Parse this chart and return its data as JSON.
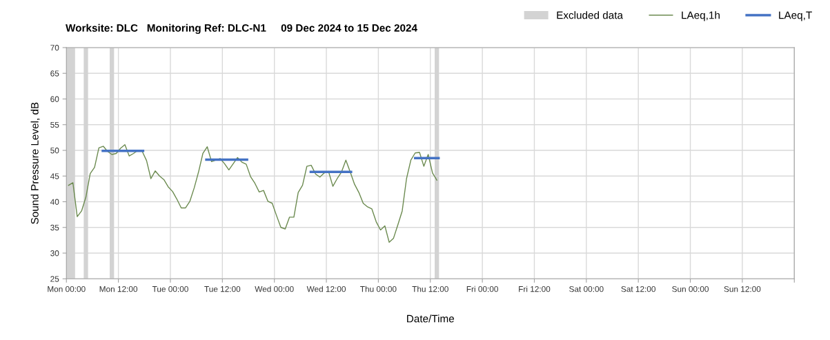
{
  "chart_data": {
    "type": "line",
    "title": "Worksite: DLC   Monitoring Ref: DLC-N1     09 Dec 2024 to 15 Dec 2024",
    "xlabel": "Date/Time",
    "ylabel": "Sound Pressure Level, dB",
    "xlim": [
      "2024-12-09T00:00",
      "2024-12-16T00:00"
    ],
    "ylim": [
      25,
      70
    ],
    "xticks": [
      {
        "value": "2024-12-09T00:00",
        "label": "Mon 00:00"
      },
      {
        "value": "2024-12-09T12:00",
        "label": "Mon 12:00"
      },
      {
        "value": "2024-12-10T00:00",
        "label": "Tue 00:00"
      },
      {
        "value": "2024-12-10T12:00",
        "label": "Tue 12:00"
      },
      {
        "value": "2024-12-11T00:00",
        "label": "Wed 00:00"
      },
      {
        "value": "2024-12-11T12:00",
        "label": "Wed 12:00"
      },
      {
        "value": "2024-12-12T00:00",
        "label": "Thu 00:00"
      },
      {
        "value": "2024-12-12T12:00",
        "label": "Thu 12:00"
      },
      {
        "value": "2024-12-13T00:00",
        "label": "Fri 00:00"
      },
      {
        "value": "2024-12-13T12:00",
        "label": "Fri 12:00"
      },
      {
        "value": "2024-12-14T00:00",
        "label": "Sat 00:00"
      },
      {
        "value": "2024-12-14T12:00",
        "label": "Sat 12:00"
      },
      {
        "value": "2024-12-15T00:00",
        "label": "Sun 00:00"
      },
      {
        "value": "2024-12-15T12:00",
        "label": "Sun 12:00"
      },
      {
        "value": "2024-12-16T00:00",
        "label": null
      }
    ],
    "yticks": [
      25,
      30,
      35,
      40,
      45,
      50,
      55,
      60,
      65,
      70
    ],
    "grid": true,
    "legend": "top right",
    "bands": [
      {
        "axis": "x",
        "from": "2024-12-09T00:00",
        "to": "2024-12-09T02:00",
        "label": "Excluded data",
        "color": "#d3d3d3"
      },
      {
        "axis": "x",
        "from": "2024-12-09T04:00",
        "to": "2024-12-09T05:00",
        "color": "#d3d3d3"
      },
      {
        "axis": "x",
        "from": "2024-12-09T10:00",
        "to": "2024-12-09T11:00",
        "color": "#d3d3d3"
      },
      {
        "axis": "x",
        "from": "2024-12-12T13:00",
        "to": "2024-12-12T14:00",
        "color": "#d3d3d3"
      }
    ],
    "series": [
      {
        "name": "LAeq,1h",
        "color": "#6b8a4f",
        "line_style": "solid",
        "x": [
          "2024-12-09T00:30",
          "2024-12-09T01:30",
          "2024-12-09T02:30",
          "2024-12-09T03:30",
          "2024-12-09T04:30",
          "2024-12-09T05:30",
          "2024-12-09T06:30",
          "2024-12-09T07:30",
          "2024-12-09T08:30",
          "2024-12-09T09:30",
          "2024-12-09T10:30",
          "2024-12-09T11:30",
          "2024-12-09T12:30",
          "2024-12-09T13:30",
          "2024-12-09T14:30",
          "2024-12-09T15:30",
          "2024-12-09T16:30",
          "2024-12-09T17:30",
          "2024-12-09T18:30",
          "2024-12-09T19:30",
          "2024-12-09T20:30",
          "2024-12-09T21:30",
          "2024-12-09T22:30",
          "2024-12-09T23:30",
          "2024-12-10T00:30",
          "2024-12-10T01:30",
          "2024-12-10T02:30",
          "2024-12-10T03:30",
          "2024-12-10T04:30",
          "2024-12-10T05:30",
          "2024-12-10T06:30",
          "2024-12-10T07:30",
          "2024-12-10T08:30",
          "2024-12-10T09:30",
          "2024-12-10T10:30",
          "2024-12-10T11:30",
          "2024-12-10T12:30",
          "2024-12-10T13:30",
          "2024-12-10T14:30",
          "2024-12-10T15:30",
          "2024-12-10T16:30",
          "2024-12-10T17:30",
          "2024-12-10T18:30",
          "2024-12-10T19:30",
          "2024-12-10T20:30",
          "2024-12-10T21:30",
          "2024-12-10T22:30",
          "2024-12-10T23:30",
          "2024-12-11T00:30",
          "2024-12-11T01:30",
          "2024-12-11T02:30",
          "2024-12-11T03:30",
          "2024-12-11T04:30",
          "2024-12-11T05:30",
          "2024-12-11T06:30",
          "2024-12-11T07:30",
          "2024-12-11T08:30",
          "2024-12-11T09:30",
          "2024-12-11T10:30",
          "2024-12-11T11:30",
          "2024-12-11T12:30",
          "2024-12-11T13:30",
          "2024-12-11T14:30",
          "2024-12-11T15:30",
          "2024-12-11T16:30",
          "2024-12-11T17:30",
          "2024-12-11T18:30",
          "2024-12-11T19:30",
          "2024-12-11T20:30",
          "2024-12-11T21:30",
          "2024-12-11T22:30",
          "2024-12-11T23:30",
          "2024-12-12T00:30",
          "2024-12-12T01:30",
          "2024-12-12T02:30",
          "2024-12-12T03:30",
          "2024-12-12T04:30",
          "2024-12-12T05:30",
          "2024-12-12T06:30",
          "2024-12-12T07:30",
          "2024-12-12T08:30",
          "2024-12-12T09:30",
          "2024-12-12T10:30",
          "2024-12-12T11:30",
          "2024-12-12T12:30",
          "2024-12-12T13:30"
        ],
        "values": [
          43.2,
          43.7,
          37.1,
          38.2,
          40.9,
          45.5,
          46.7,
          50.5,
          50.8,
          49.8,
          49.2,
          49.4,
          50.4,
          51.1,
          48.9,
          49.4,
          50.0,
          49.8,
          48.0,
          44.5,
          46.0,
          45.0,
          44.3,
          42.9,
          42.0,
          40.5,
          38.8,
          38.8,
          40.1,
          42.7,
          45.8,
          49.4,
          50.7,
          47.8,
          48.1,
          48.4,
          47.4,
          46.2,
          47.4,
          48.6,
          47.7,
          47.3,
          44.9,
          43.6,
          41.9,
          42.2,
          40.1,
          39.7,
          37.3,
          35.0,
          34.7,
          37.0,
          37.0,
          41.8,
          43.2,
          46.9,
          47.1,
          45.4,
          44.8,
          45.6,
          45.9,
          43.0,
          44.5,
          45.8,
          48.1,
          45.8,
          43.4,
          41.8,
          39.7,
          39.0,
          38.6,
          36.1,
          34.5,
          35.3,
          32.1,
          32.9,
          35.5,
          38.2,
          44.5,
          48.1,
          49.5,
          49.6,
          46.9,
          49.2,
          45.6,
          44.2
        ]
      },
      {
        "name": "LAeq,T",
        "color": "#4472c4",
        "line_style": "solid",
        "x": [
          "2024-12-09T08:24",
          "2024-12-09T17:42",
          "2024-12-10T01:00",
          "2024-12-10T08:18",
          "2024-12-10T17:42",
          "2024-12-11T02:00",
          "2024-12-11T08:24",
          "2024-12-11T17:42",
          "2024-12-12T03:00",
          "2024-12-12T08:30",
          "2024-12-12T13:54"
        ],
        "values": [
          49.9,
          49.9,
          null,
          48.2,
          48.2,
          null,
          45.8,
          45.8,
          null,
          48.5,
          48.5
        ]
      }
    ]
  }
}
